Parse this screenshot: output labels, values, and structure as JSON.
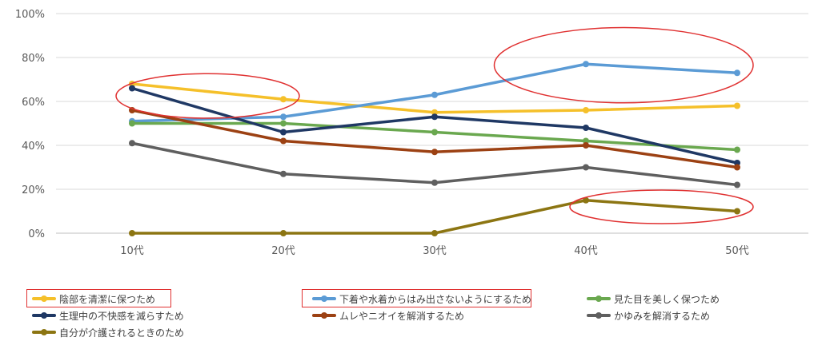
{
  "chart_data": {
    "type": "line",
    "title": "",
    "xlabel": "",
    "ylabel": "",
    "categories": [
      "10代",
      "20代",
      "30代",
      "40代",
      "50代"
    ],
    "ylim": [
      0,
      100
    ],
    "yticks": [
      "0%",
      "20%",
      "40%",
      "60%",
      "80%",
      "100%"
    ],
    "yticks_values": [
      0,
      20,
      40,
      60,
      80,
      100
    ],
    "grid": true,
    "legend_position": "bottom",
    "series": [
      {
        "name": "陰部を清潔に保つため",
        "color": "#f5c02a",
        "values": [
          68,
          61,
          55,
          56,
          58
        ]
      },
      {
        "name": "下着や水着からはみ出さないようにするため",
        "color": "#5b9bd5",
        "values": [
          51,
          53,
          63,
          77,
          73
        ]
      },
      {
        "name": "見た目を美しく保つため",
        "color": "#6aa84f",
        "values": [
          50,
          50,
          46,
          42,
          38
        ]
      },
      {
        "name": "生理中の不快感を減らすため",
        "color": "#1f3864",
        "values": [
          66,
          46,
          53,
          48,
          32
        ]
      },
      {
        "name": "ムレやニオイを解消するため",
        "color": "#9c4113",
        "values": [
          56,
          42,
          37,
          40,
          30
        ]
      },
      {
        "name": "かゆみを解消するため",
        "color": "#5f5f5f",
        "values": [
          41,
          27,
          23,
          30,
          22
        ]
      },
      {
        "name": "自分が介護されるときのため",
        "color": "#8c7512",
        "values": [
          0,
          0,
          0,
          15,
          10
        ]
      }
    ],
    "annotation_color": "#e03131"
  }
}
